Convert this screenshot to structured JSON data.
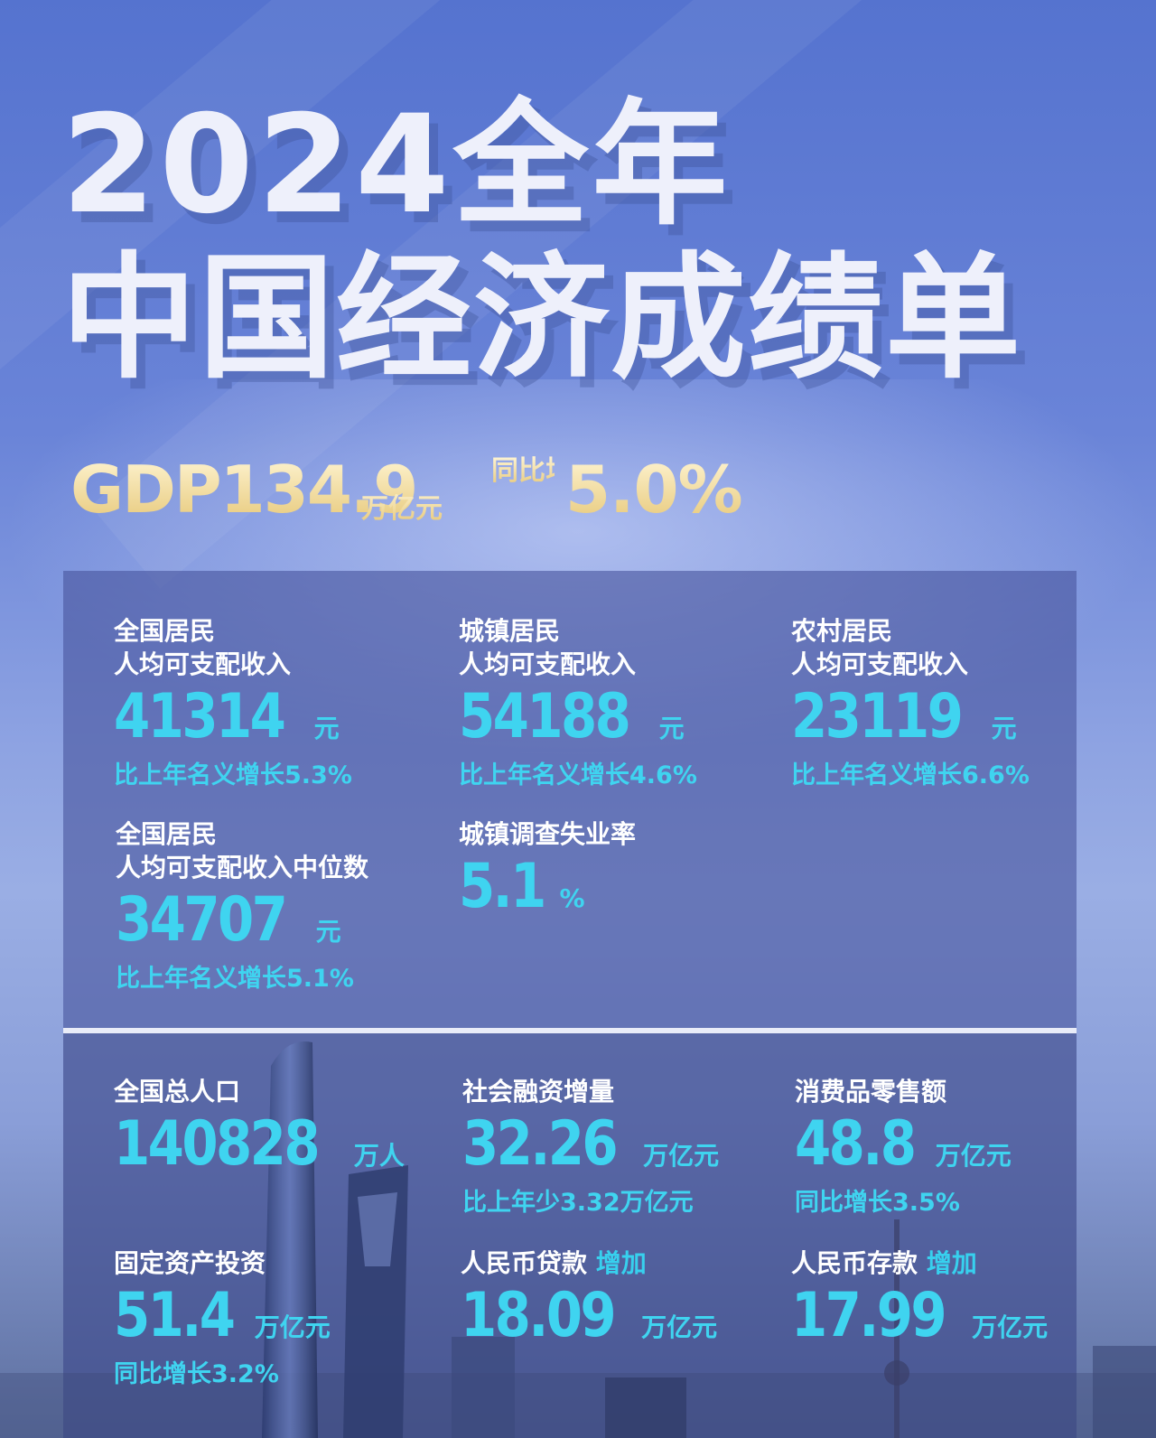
{
  "title": {
    "line1": "2024全年",
    "line2": "中国经济成绩单"
  },
  "gdp": {
    "value": "GDP134.9",
    "unit": "万亿元",
    "yoy_label": "同比增长",
    "yoy_value": "5.0%"
  },
  "panel1": [
    {
      "label1": "全国居民",
      "label2": "人均可支配收入",
      "value": "41314",
      "unit": "元",
      "note": "比上年名义增长5.3%"
    },
    {
      "label1": "城镇居民",
      "label2": "人均可支配收入",
      "value": "54188",
      "unit": "元",
      "note": "比上年名义增长4.6%"
    },
    {
      "label1": "农村居民",
      "label2": "人均可支配收入",
      "value": "23119",
      "unit": "元",
      "note": "比上年名义增长6.6%"
    },
    {
      "label1": "全国居民",
      "label2": "人均可支配收入中位数",
      "value": "34707",
      "unit": "元",
      "note": "比上年名义增长5.1%"
    },
    {
      "label1": "城镇调查失业率",
      "value": "5.1",
      "unit": "%"
    }
  ],
  "panel2": [
    {
      "label": "全国总人口",
      "value": "140828",
      "unit": "万人"
    },
    {
      "label": "社会融资增量",
      "value": "32.26",
      "unit": "万亿元",
      "note": "比上年少3.32万亿元"
    },
    {
      "label": "消费品零售额",
      "value": "48.8",
      "unit": "万亿元",
      "note": "同比增长3.5%"
    },
    {
      "label": "固定资产投资",
      "value": "51.4",
      "unit": "万亿元",
      "note": "同比增长3.2%"
    },
    {
      "label": "人民币贷款",
      "label_hl": "增加",
      "value": "18.09",
      "unit": "万亿元"
    },
    {
      "label": "人民币存款",
      "label_hl": "增加",
      "value": "17.99",
      "unit": "万亿元"
    }
  ],
  "colors": {
    "accent": "#3fd4f0",
    "gold": "#e6c777",
    "title": "#eef0fb"
  }
}
